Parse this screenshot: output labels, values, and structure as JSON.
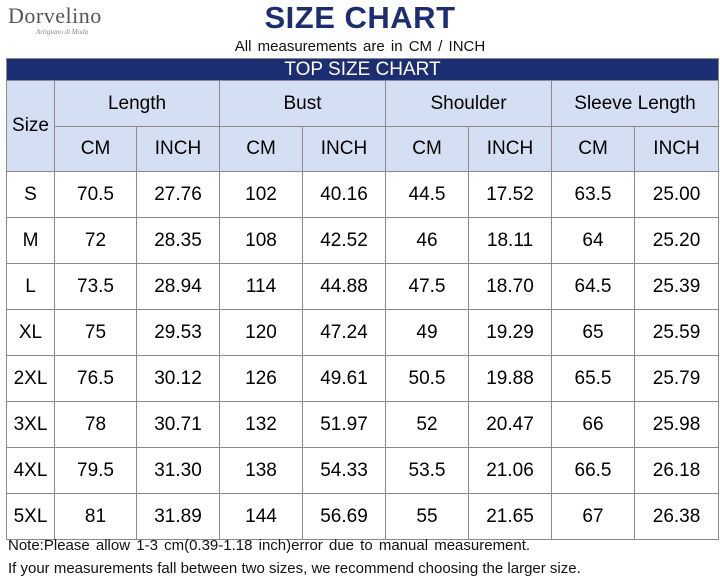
{
  "brand": {
    "name": "Dorvelino",
    "tagline": "Artigiano di Moda"
  },
  "title": "SIZE CHART",
  "subtitle": "All measurements are in CM / INCH",
  "table_title": "TOP SIZE CHART",
  "size_label": "Size",
  "groups": [
    "Length",
    "Bust",
    "Shoulder",
    "Sleeve Length"
  ],
  "units": [
    "CM",
    "INCH",
    "CM",
    "INCH",
    "CM",
    "INCH",
    "CM",
    "INCH"
  ],
  "rows": [
    {
      "size": "S",
      "values": [
        "70.5",
        "27.76",
        "102",
        "40.16",
        "44.5",
        "17.52",
        "63.5",
        "25.00"
      ]
    },
    {
      "size": "M",
      "values": [
        "72",
        "28.35",
        "108",
        "42.52",
        "46",
        "18.11",
        "64",
        "25.20"
      ]
    },
    {
      "size": "L",
      "values": [
        "73.5",
        "28.94",
        "114",
        "44.88",
        "47.5",
        "18.70",
        "64.5",
        "25.39"
      ]
    },
    {
      "size": "XL",
      "values": [
        "75",
        "29.53",
        "120",
        "47.24",
        "49",
        "19.29",
        "65",
        "25.59"
      ]
    },
    {
      "size": "2XL",
      "values": [
        "76.5",
        "30.12",
        "126",
        "49.61",
        "50.5",
        "19.88",
        "65.5",
        "25.79"
      ]
    },
    {
      "size": "3XL",
      "values": [
        "78",
        "30.71",
        "132",
        "51.97",
        "52",
        "20.47",
        "66",
        "25.98"
      ]
    },
    {
      "size": "4XL",
      "values": [
        "79.5",
        "31.30",
        "138",
        "54.33",
        "53.5",
        "21.06",
        "66.5",
        "26.18"
      ]
    },
    {
      "size": "5XL",
      "values": [
        "81",
        "31.89",
        "144",
        "56.69",
        "55",
        "21.65",
        "67",
        "26.38"
      ]
    }
  ],
  "notes": [
    "Note:Please allow 1-3 cm(0.39-1.18 inch)error due to manual measurement.",
    "If your measurements fall between two sizes, we recommend choosing the larger size."
  ],
  "colors": {
    "title": "#1c2e73",
    "band": "#1c2e73",
    "header_fill": "#d5dff3",
    "grid": "#8a8a8a"
  }
}
